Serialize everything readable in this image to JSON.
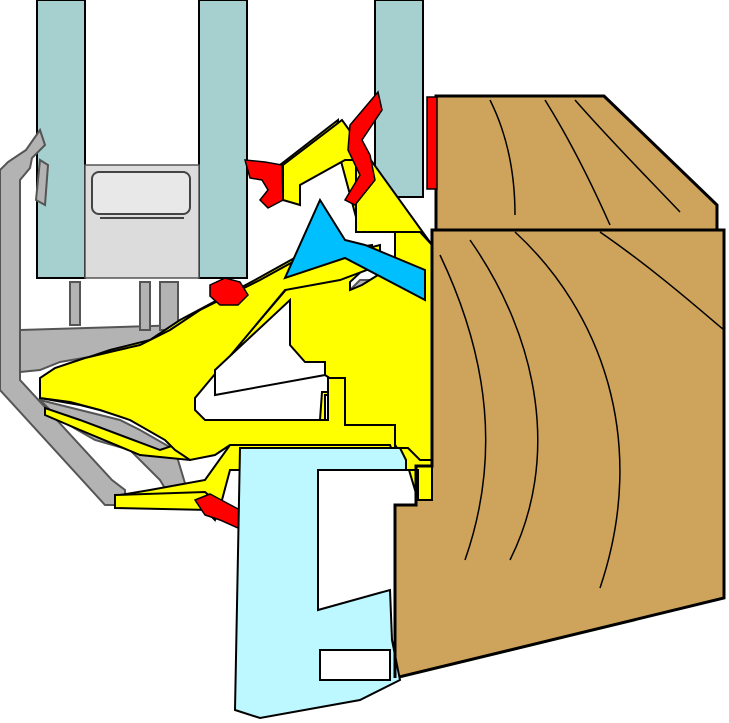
{
  "diagram": {
    "type": "window frame cross-section (technical drawing)",
    "colors": {
      "background": "#ffffff",
      "outline": "#000000",
      "glass": "#a6cfcf",
      "spacer": "#bfbfbf",
      "spacer_inner": "#dcdcdc",
      "aluminium_grey": "#b3b3b3",
      "yellow_profile": "#ffff00",
      "red_gasket": "#ff0000",
      "blue_wedge": "#00bfff",
      "light_blue_profile": "#bdf7ff",
      "wood": "#cea35c",
      "grain_line": "#000000"
    },
    "components": [
      "glass-pane-1",
      "glass-pane-2",
      "glass-pane-3",
      "spacer-bar",
      "grey-outer-profile",
      "grey-inner-profile",
      "yellow-bead-profile",
      "red-gaskets",
      "blue-wedge",
      "light-blue-frame-profile",
      "wood-sash",
      "wood-frame"
    ]
  }
}
